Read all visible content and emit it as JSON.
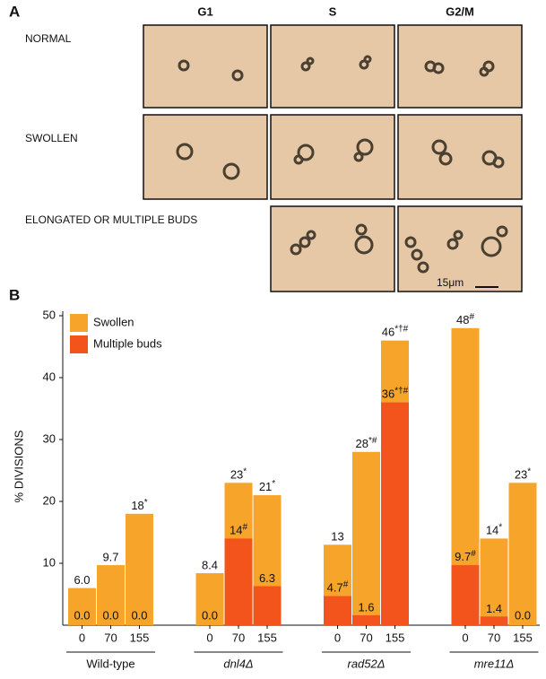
{
  "panel_a": {
    "label": "A",
    "columns": [
      "G1",
      "S",
      "G2/M"
    ],
    "rows": [
      "NORMAL",
      "SWOLLEN",
      "ELONGATED OR MULTIPLE BUDS"
    ],
    "scale_bar": "15μm"
  },
  "chart_data": {
    "type": "bar",
    "panel_label": "B",
    "y_label": "% DIVISIONS",
    "categories": [
      "0",
      "70",
      "155",
      "0",
      "70",
      "155",
      "0",
      "70",
      "155",
      "0",
      "70",
      "155"
    ],
    "groups": [
      "Wild-type",
      "dnl4Δ",
      "rad52Δ",
      "mre11Δ"
    ],
    "series": [
      {
        "name": "Swollen",
        "color": "#f7a42a",
        "values": [
          6.0,
          9.7,
          18,
          8.4,
          23,
          21,
          13,
          28,
          46,
          48,
          14,
          23
        ],
        "value_labels": [
          "6.0",
          "9.7",
          "18*",
          "8.4",
          "23*",
          "21*",
          "13",
          "28*#",
          "46*†#",
          "48#",
          "14*",
          "23*"
        ]
      },
      {
        "name": "Multiple buds",
        "color": "#f2541b",
        "values": [
          0.0,
          0.0,
          0.0,
          0.0,
          14,
          6.3,
          4.7,
          1.6,
          36,
          9.7,
          1.4,
          0.0
        ],
        "value_labels": [
          "0.0",
          "0.0",
          "0.0",
          "0.0",
          "14#",
          "6.3",
          "4.7#",
          "1.6",
          "36*†#",
          "9.7#",
          "1.4",
          "0.0"
        ]
      }
    ],
    "ylim": [
      0,
      50
    ],
    "yticks": [
      10,
      20,
      30,
      40,
      50
    ],
    "legend": "top-left"
  }
}
